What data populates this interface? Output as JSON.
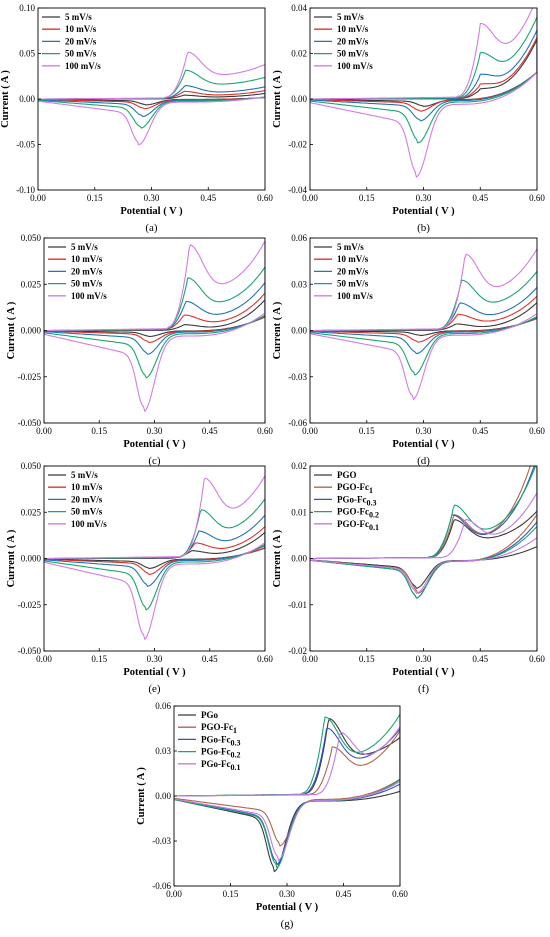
{
  "chart_data": [
    {
      "type": "line",
      "caption": "(a)",
      "xlabel": "Potential ( V )",
      "ylabel": "Current ( A )",
      "xlim": [
        0.0,
        0.6
      ],
      "ylim": [
        -0.1,
        0.1
      ],
      "xticks": [
        "0.00",
        "0.15",
        "0.30",
        "0.45",
        "0.60"
      ],
      "yticks": [
        "-0.10",
        "-0.05",
        "0.00",
        "0.05",
        "0.10"
      ],
      "legend": "top-left",
      "series": [
        {
          "name": "5 mV/s",
          "color": "#3a3a3a",
          "peak_anodic": [
            0.385,
            0.004
          ],
          "peak_cathodic": [
            0.285,
            -0.006
          ],
          "end_value": 0.004
        },
        {
          "name": "10 mV/s",
          "color": "#e0322b",
          "peak_anodic": [
            0.385,
            0.008
          ],
          "peak_cathodic": [
            0.28,
            -0.01
          ],
          "end_value": 0.005
        },
        {
          "name": "20 mV/s",
          "color": "#1f77b4",
          "peak_anodic": [
            0.388,
            0.014
          ],
          "peak_cathodic": [
            0.275,
            -0.018
          ],
          "end_value": 0.006
        },
        {
          "name": "50 mV/s",
          "color": "#19a66f",
          "peak_anodic": [
            0.39,
            0.03
          ],
          "peak_cathodic": [
            0.27,
            -0.03
          ],
          "end_value": 0.008
        },
        {
          "name": "100 mV/s",
          "color": "#d47be6",
          "peak_anodic": [
            0.395,
            0.049
          ],
          "peak_cathodic": [
            0.265,
            -0.047
          ],
          "end_value": 0.012
        }
      ]
    },
    {
      "type": "line",
      "caption": "(b)",
      "xlabel": "Potential ( V )",
      "ylabel": "Current ( A )",
      "xlim": [
        0.0,
        0.6
      ],
      "ylim": [
        -0.04,
        0.04
      ],
      "xticks": [
        "0.00",
        "0.15",
        "0.30",
        "0.45",
        "0.60"
      ],
      "yticks": [
        "-0.04",
        "-0.02",
        "0.00",
        "0.02",
        "0.04"
      ],
      "legend": "top-left",
      "series": [
        {
          "name": "5 mV/s",
          "color": "#3a3a3a",
          "peak_anodic": [
            0.45,
            0.004
          ],
          "peak_cathodic": [
            0.3,
            -0.003
          ],
          "end_value": 0.024
        },
        {
          "name": "10 mV/s",
          "color": "#e0322b",
          "peak_anodic": [
            0.45,
            0.006
          ],
          "peak_cathodic": [
            0.29,
            -0.005
          ],
          "end_value": 0.024
        },
        {
          "name": "20 mV/s",
          "color": "#1f77b4",
          "peak_anodic": [
            0.45,
            0.01
          ],
          "peak_cathodic": [
            0.29,
            -0.009
          ],
          "end_value": 0.025
        },
        {
          "name": "50 mV/s",
          "color": "#19a66f",
          "peak_anodic": [
            0.45,
            0.019
          ],
          "peak_cathodic": [
            0.285,
            -0.018
          ],
          "end_value": 0.026
        },
        {
          "name": "100 mV/s",
          "color": "#d47be6",
          "peak_anodic": [
            0.45,
            0.031
          ],
          "peak_cathodic": [
            0.28,
            -0.032
          ],
          "end_value": 0.028
        }
      ]
    },
    {
      "type": "line",
      "caption": "(c)",
      "xlabel": "Potential ( V )",
      "ylabel": "Current ( A )",
      "xlim": [
        0.0,
        0.6
      ],
      "ylim": [
        -0.05,
        0.05
      ],
      "xticks": [
        "0.00",
        "0.15",
        "0.30",
        "0.45",
        "0.60"
      ],
      "yticks": [
        "-0.050",
        "-0.025",
        "0.000",
        "0.025",
        "0.050"
      ],
      "legend": "top-left",
      "series": [
        {
          "name": "5 mV/s",
          "color": "#3a3a3a",
          "peak_anodic": [
            0.38,
            0.003
          ],
          "peak_cathodic": [
            0.285,
            -0.003
          ],
          "end_value": 0.015
        },
        {
          "name": "10 mV/s",
          "color": "#e0322b",
          "peak_anodic": [
            0.38,
            0.008
          ],
          "peak_cathodic": [
            0.285,
            -0.006
          ],
          "end_value": 0.016
        },
        {
          "name": "20 mV/s",
          "color": "#1f77b4",
          "peak_anodic": [
            0.385,
            0.015
          ],
          "peak_cathodic": [
            0.28,
            -0.012
          ],
          "end_value": 0.018
        },
        {
          "name": "50 mV/s",
          "color": "#19a66f",
          "peak_anodic": [
            0.39,
            0.027
          ],
          "peak_cathodic": [
            0.275,
            -0.024
          ],
          "end_value": 0.02
        },
        {
          "name": "100 mV/s",
          "color": "#d47be6",
          "peak_anodic": [
            0.395,
            0.044
          ],
          "peak_cathodic": [
            0.27,
            -0.041
          ],
          "end_value": 0.025
        }
      ]
    },
    {
      "type": "line",
      "caption": "(d)",
      "xlabel": "Potential ( V )",
      "ylabel": "Current ( A )",
      "xlim": [
        0.0,
        0.6
      ],
      "ylim": [
        -0.06,
        0.06
      ],
      "xticks": [
        "0.00",
        "0.15",
        "0.30",
        "0.45",
        "0.60"
      ],
      "yticks": [
        "-0.06",
        "-0.03",
        "0.00",
        "0.03",
        "0.06"
      ],
      "legend": "top-left",
      "series": [
        {
          "name": "5 mV/s",
          "color": "#3a3a3a",
          "peak_anodic": [
            0.385,
            0.004
          ],
          "peak_cathodic": [
            0.29,
            -0.003
          ],
          "end_value": 0.016
        },
        {
          "name": "10 mV/s",
          "color": "#e0322b",
          "peak_anodic": [
            0.39,
            0.01
          ],
          "peak_cathodic": [
            0.285,
            -0.007
          ],
          "end_value": 0.017
        },
        {
          "name": "20 mV/s",
          "color": "#1f77b4",
          "peak_anodic": [
            0.395,
            0.017
          ],
          "peak_cathodic": [
            0.28,
            -0.014
          ],
          "end_value": 0.019
        },
        {
          "name": "50 mV/s",
          "color": "#19a66f",
          "peak_anodic": [
            0.4,
            0.031
          ],
          "peak_cathodic": [
            0.275,
            -0.027
          ],
          "end_value": 0.022
        },
        {
          "name": "100 mV/s",
          "color": "#d47be6",
          "peak_anodic": [
            0.41,
            0.047
          ],
          "peak_cathodic": [
            0.27,
            -0.042
          ],
          "end_value": 0.028
        }
      ]
    },
    {
      "type": "line",
      "caption": "(e)",
      "xlabel": "Potential ( V )",
      "ylabel": "Current ( A )",
      "xlim": [
        0.0,
        0.6
      ],
      "ylim": [
        -0.05,
        0.05
      ],
      "xticks": [
        "0.00",
        "0.15",
        "0.30",
        "0.45",
        "0.60"
      ],
      "yticks": [
        "-0.050",
        "-0.025",
        "0.000",
        "0.025",
        "0.050"
      ],
      "legend": "top-left",
      "series": [
        {
          "name": "5 mV/s",
          "color": "#3a3a3a",
          "peak_anodic": [
            0.4,
            0.004
          ],
          "peak_cathodic": [
            0.285,
            -0.005
          ],
          "end_value": 0.012
        },
        {
          "name": "10 mV/s",
          "color": "#e0322b",
          "peak_anodic": [
            0.41,
            0.008
          ],
          "peak_cathodic": [
            0.285,
            -0.008
          ],
          "end_value": 0.013
        },
        {
          "name": "20 mV/s",
          "color": "#1f77b4",
          "peak_anodic": [
            0.42,
            0.014
          ],
          "peak_cathodic": [
            0.28,
            -0.014
          ],
          "end_value": 0.016
        },
        {
          "name": "50 mV/s",
          "color": "#19a66f",
          "peak_anodic": [
            0.425,
            0.025
          ],
          "peak_cathodic": [
            0.275,
            -0.026
          ],
          "end_value": 0.019
        },
        {
          "name": "100 mV/s",
          "color": "#d47be6",
          "peak_anodic": [
            0.435,
            0.041
          ],
          "peak_cathodic": [
            0.27,
            -0.041
          ],
          "end_value": 0.023
        }
      ]
    },
    {
      "type": "line",
      "caption": "(f)",
      "xlabel": "Potential ( V )",
      "ylabel": "Current ( A )",
      "xlim": [
        0.0,
        0.6
      ],
      "ylim": [
        -0.02,
        0.02
      ],
      "xticks": [
        "0.00",
        "0.15",
        "0.30",
        "0.45",
        "0.60"
      ],
      "yticks": [
        "-0.02",
        "-0.01",
        "0.00",
        "0.01",
        "0.02"
      ],
      "legend": "top-left",
      "series": [
        {
          "name": "PGO",
          "legend_sub": "",
          "color": "#3a3a3a",
          "peak_anodic": [
            0.38,
            0.008
          ],
          "peak_cathodic": [
            0.28,
            -0.006
          ],
          "end_value": 0.006
        },
        {
          "name": "PGO-Fc",
          "legend_sub": "1",
          "color": "#b0654a",
          "peak_anodic": [
            0.38,
            0.009
          ],
          "peak_cathodic": [
            0.285,
            -0.007
          ],
          "end_value": 0.02
        },
        {
          "name": "PGo-Fc",
          "legend_sub": "0.3",
          "color": "#3652c8",
          "peak_anodic": [
            0.375,
            0.009
          ],
          "peak_cathodic": [
            0.28,
            -0.008
          ],
          "end_value": 0.017
        },
        {
          "name": "PGO-Fc",
          "legend_sub": "0.2",
          "color": "#19a66f",
          "peak_anodic": [
            0.38,
            0.011
          ],
          "peak_cathodic": [
            0.28,
            -0.008
          ],
          "end_value": 0.015
        },
        {
          "name": "PGO-Fc",
          "legend_sub": "0.1",
          "color": "#c07be6",
          "peak_anodic": [
            0.41,
            0.008
          ],
          "peak_cathodic": [
            0.28,
            -0.007
          ],
          "end_value": 0.01
        }
      ]
    },
    {
      "type": "line",
      "caption": "(g)",
      "xlabel": "Potential ( V )",
      "ylabel": "Current ( A )",
      "xlim": [
        0.0,
        0.6
      ],
      "ylim": [
        -0.06,
        0.06
      ],
      "xticks": [
        "0.00",
        "0.15",
        "0.30",
        "0.45",
        "0.60"
      ],
      "yticks": [
        "-0.06",
        "-0.03",
        "0.00",
        "0.03",
        "0.06"
      ],
      "legend": "top-left",
      "series": [
        {
          "name": "PGo",
          "legend_sub": "",
          "color": "#3a3a3a",
          "peak_anodic": [
            0.41,
            0.049
          ],
          "peak_cathodic": [
            0.265,
            -0.047
          ],
          "end_value": 0.013
        },
        {
          "name": "PGO-Fc",
          "legend_sub": "1",
          "color": "#b0654a",
          "peak_anodic": [
            0.42,
            0.031
          ],
          "peak_cathodic": [
            0.28,
            -0.031
          ],
          "end_value": 0.027
        },
        {
          "name": "PGo-Fc",
          "legend_sub": "0.3",
          "color": "#3652c8",
          "peak_anodic": [
            0.405,
            0.043
          ],
          "peak_cathodic": [
            0.27,
            -0.043
          ],
          "end_value": 0.022
        },
        {
          "name": "PGo-Fc",
          "legend_sub": "0.2",
          "color": "#19a66f",
          "peak_anodic": [
            0.4,
            0.05
          ],
          "peak_cathodic": [
            0.27,
            -0.045
          ],
          "end_value": 0.028
        },
        {
          "name": "PGo-Fc",
          "legend_sub": "0.1",
          "color": "#c07be6",
          "peak_anodic": [
            0.44,
            0.04
          ],
          "peak_cathodic": [
            0.275,
            -0.04
          ],
          "end_value": 0.025
        }
      ]
    }
  ]
}
